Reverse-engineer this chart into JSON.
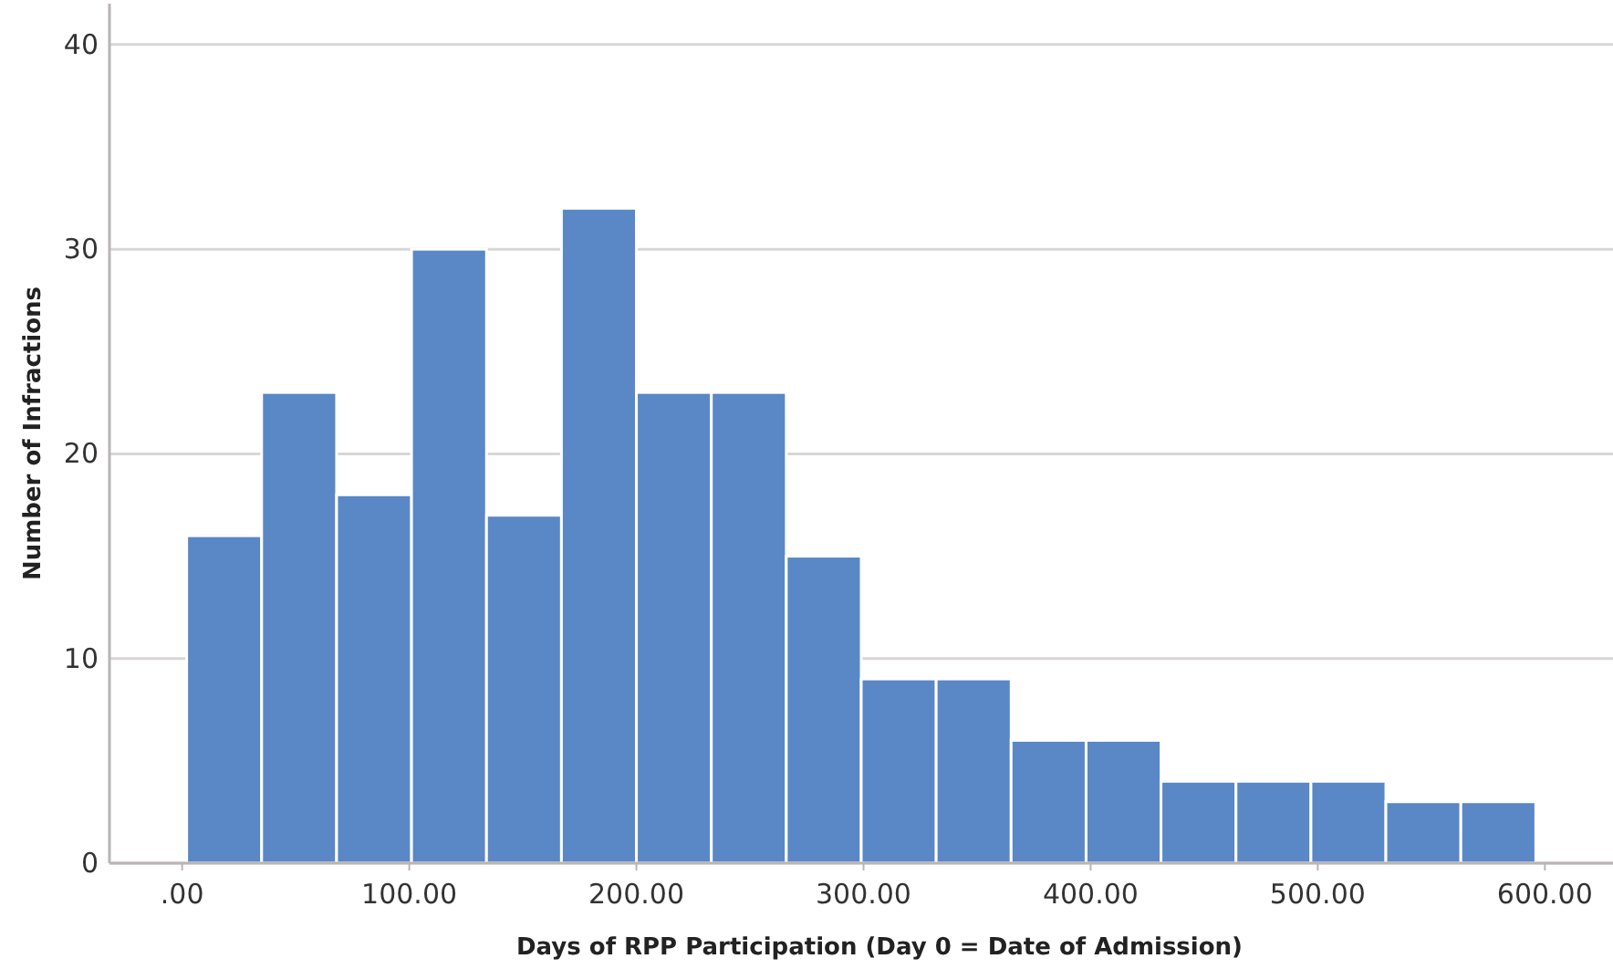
{
  "chart_data": {
    "type": "histogram",
    "xlabel": "Days of RPP Participation (Day 0 = Date of Admission)",
    "ylabel": "Number of Infractions",
    "bins": [
      2,
      35,
      68,
      101,
      134,
      167,
      200,
      233,
      266,
      299,
      332,
      365,
      398,
      431,
      464,
      497,
      530,
      563,
      596
    ],
    "values": [
      16,
      23,
      18,
      30,
      17,
      32,
      23,
      23,
      15,
      9,
      9,
      6,
      6,
      4,
      4,
      4,
      3,
      3
    ],
    "color": "#5a87c5",
    "xlim": [
      -32,
      630
    ],
    "xticks": [
      {
        "value": 0,
        "label": ".00"
      },
      {
        "value": 100,
        "label": "100.00"
      },
      {
        "value": 200,
        "label": "200.00"
      },
      {
        "value": 300,
        "label": "300.00"
      },
      {
        "value": 400,
        "label": "400.00"
      },
      {
        "value": 500,
        "label": "500.00"
      },
      {
        "value": 600,
        "label": "600.00"
      }
    ],
    "ylim": [
      0,
      42
    ],
    "yticks": [
      0,
      10,
      20,
      30,
      40
    ],
    "grid": "y"
  }
}
